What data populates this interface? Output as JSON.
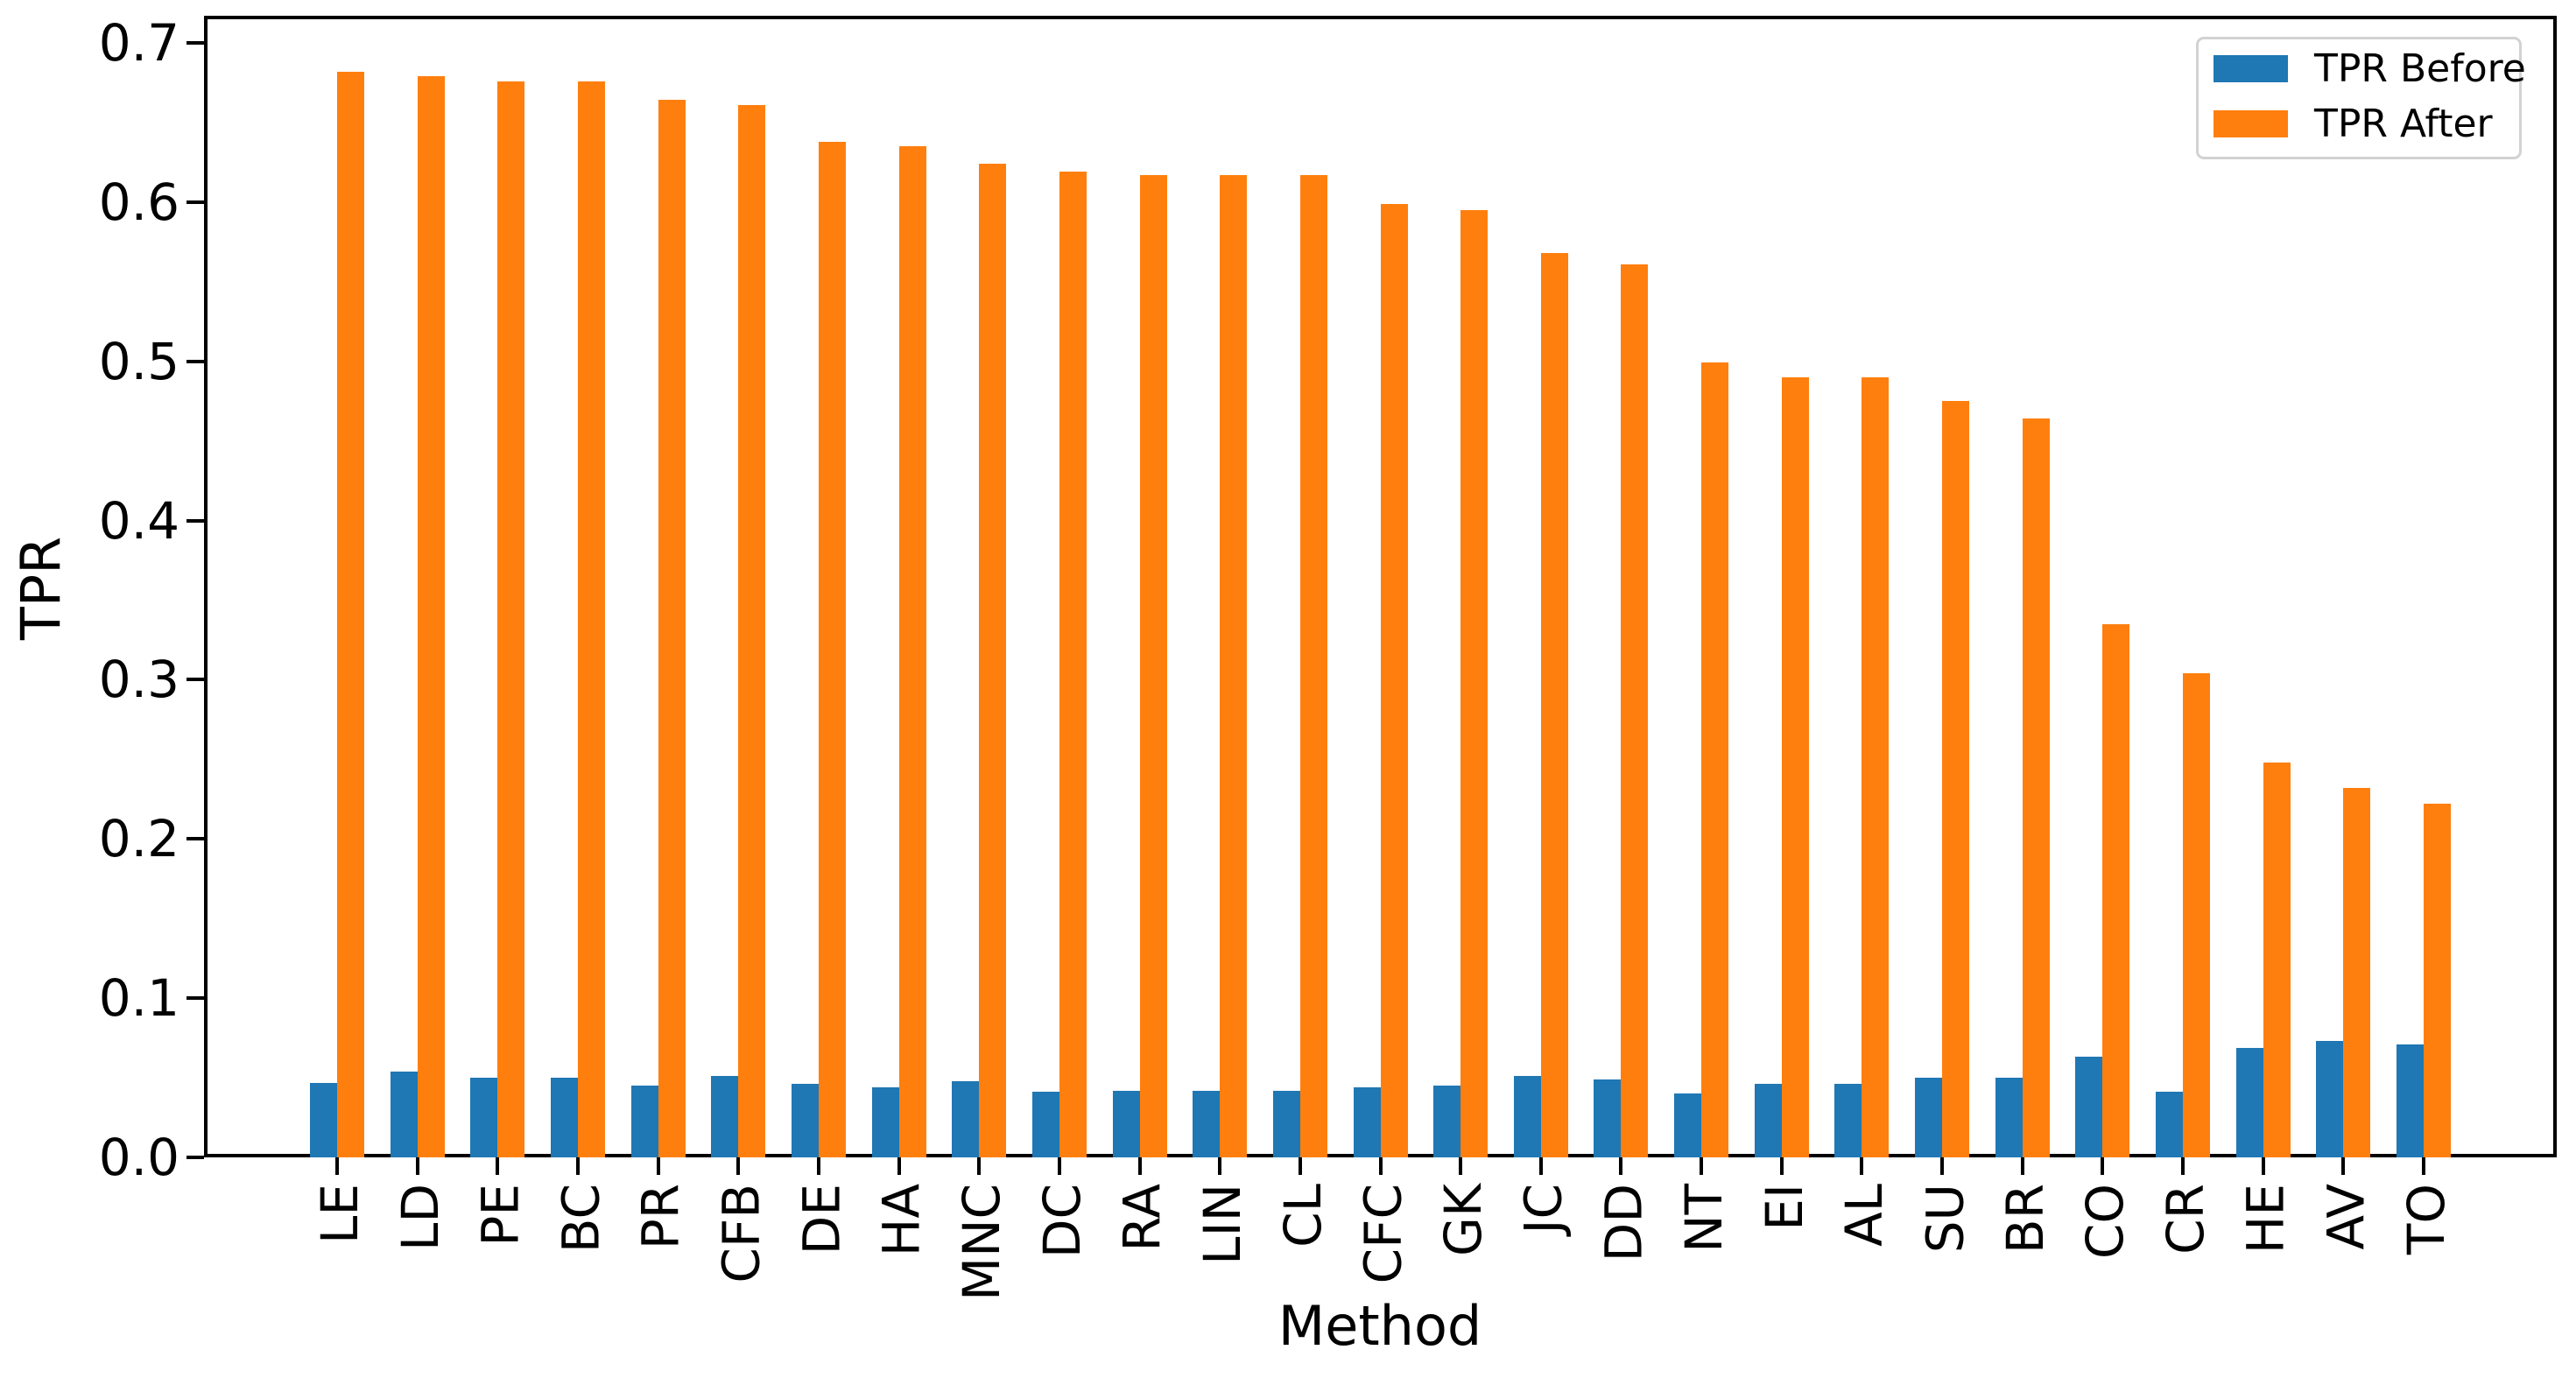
{
  "figure": {
    "y_axis_label": "TPR",
    "x_axis_label": "Method"
  },
  "legend": {
    "entries": [
      {
        "label": "TPR Before",
        "color": "#1f77b4"
      },
      {
        "label": "TPR After",
        "color": "#ff7f0e"
      }
    ]
  },
  "chart_data": {
    "type": "bar",
    "title": "",
    "xlabel": "Method",
    "ylabel": "TPR",
    "grid": false,
    "legend_position": "upper right",
    "categories": [
      "LE",
      "LD",
      "PE",
      "BC",
      "PR",
      "CFB",
      "DE",
      "HA",
      "MNC",
      "DC",
      "RA",
      "LIN",
      "CL",
      "CFC",
      "GK",
      "JC",
      "DD",
      "NT",
      "EI",
      "AL",
      "SU",
      "BR",
      "CO",
      "CR",
      "HE",
      "AV",
      "TO"
    ],
    "series": [
      {
        "name": "TPR Before",
        "color": "#1f77b4",
        "values": [
          0.047,
          0.054,
          0.05,
          0.05,
          0.045,
          0.051,
          0.046,
          0.044,
          0.048,
          0.041,
          0.042,
          0.042,
          0.042,
          0.044,
          0.045,
          0.051,
          0.049,
          0.04,
          0.046,
          0.046,
          0.05,
          0.05,
          0.063,
          0.041,
          0.069,
          0.073,
          0.071
        ]
      },
      {
        "name": "TPR After",
        "color": "#ff7f0e",
        "values": [
          0.682,
          0.679,
          0.676,
          0.676,
          0.664,
          0.661,
          0.638,
          0.635,
          0.624,
          0.619,
          0.617,
          0.617,
          0.617,
          0.599,
          0.595,
          0.568,
          0.561,
          0.499,
          0.49,
          0.49,
          0.475,
          0.464,
          0.335,
          0.304,
          0.248,
          0.232,
          0.222
        ]
      }
    ],
    "y_ticks": [
      "0.0",
      "0.1",
      "0.2",
      "0.3",
      "0.4",
      "0.5",
      "0.6",
      "0.7"
    ],
    "ylim": [
      0,
      0.717
    ]
  }
}
